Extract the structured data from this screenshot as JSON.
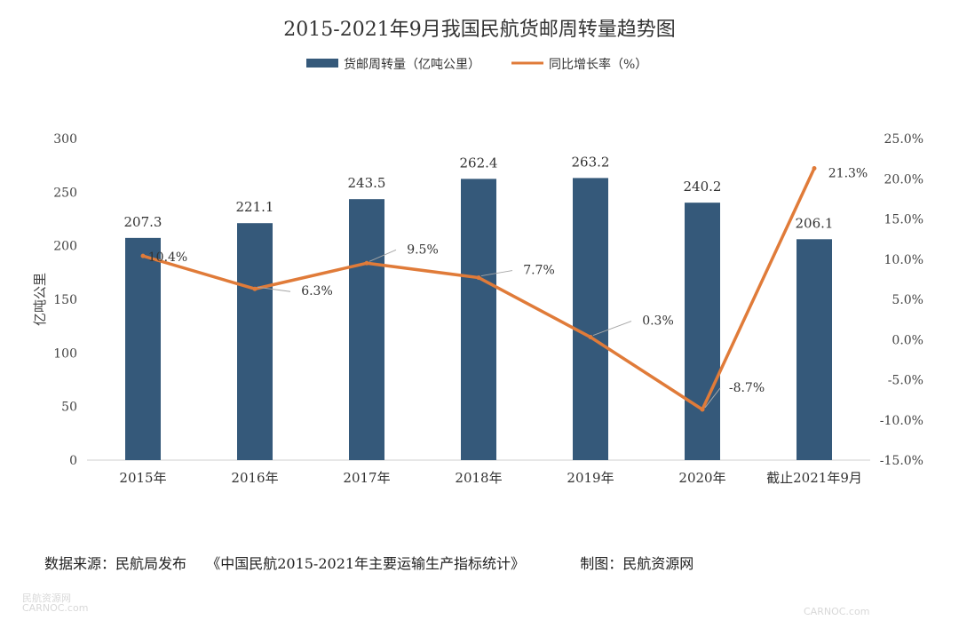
{
  "chart_data": {
    "type": "bar+line",
    "title": "2015-2021年9月我国民航货邮周转量趋势图",
    "categories": [
      "2015年",
      "2016年",
      "2017年",
      "2018年",
      "2019年",
      "2020年",
      "截止2021年9月"
    ],
    "series": [
      {
        "name": "货邮周转量（亿吨公里）",
        "kind": "bar",
        "axis": "left",
        "values": [
          207.3,
          221.1,
          243.5,
          262.4,
          263.2,
          240.2,
          206.1
        ],
        "labels": [
          "207.3",
          "221.1",
          "243.5",
          "262.4",
          "263.2",
          "240.2",
          "206.1"
        ],
        "color": "#35597a"
      },
      {
        "name": "同比增长率（%）",
        "kind": "line",
        "axis": "right",
        "values": [
          10.4,
          6.3,
          9.5,
          7.7,
          0.3,
          -8.7,
          21.3
        ],
        "labels": [
          "10.4%",
          "6.3%",
          "9.5%",
          "7.7%",
          "0.3%",
          "-8.7%",
          "21.3%"
        ],
        "color": "#e07b39"
      }
    ],
    "ylabel": "亿吨公里",
    "ylim": [
      0,
      300
    ],
    "yticks": [
      0,
      50,
      100,
      150,
      200,
      250,
      300
    ],
    "ytick_labels": [
      "0",
      "50",
      "100",
      "150",
      "200",
      "250",
      "300"
    ],
    "y2lim": [
      -15,
      25
    ],
    "y2ticks": [
      -15,
      -10,
      -5,
      0,
      5,
      10,
      15,
      20,
      25
    ],
    "y2tick_labels": [
      "-15.0%",
      "-10.0%",
      "-5.0%",
      "0.0%",
      "5.0%",
      "10.0%",
      "15.0%",
      "20.0%",
      "25.0%"
    ],
    "legend_position": "top-center",
    "grid": false
  },
  "footer": {
    "source_label": "数据来源：民航局发布",
    "source_doc": "《中国民航2015-2021年主要运输生产指标统计》",
    "credit": "制图：民航资源网"
  },
  "watermarks": {
    "left_top": "民航资源网",
    "left_bottom": "CARNOC.com",
    "right": "CARNOC.com"
  }
}
